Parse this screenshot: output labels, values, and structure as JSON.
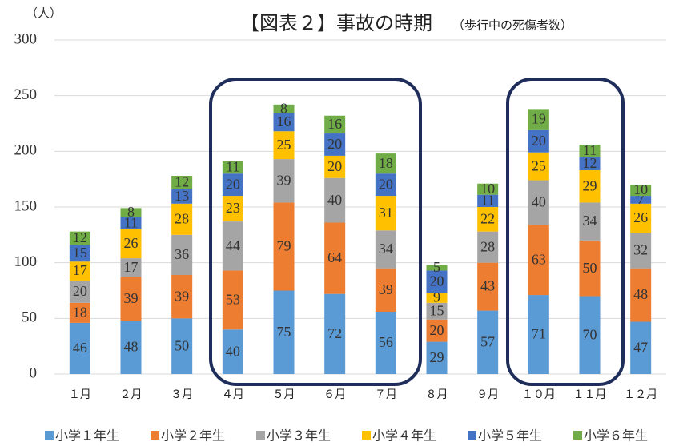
{
  "chart_data": {
    "type": "stacked-bar",
    "title": "【図表２】事故の時期",
    "subtitle": "（歩行中の死傷者数）",
    "y_label": "（人）",
    "categories": [
      "１月",
      "２月",
      "３月",
      "４月",
      "５月",
      "６月",
      "７月",
      "８月",
      "９月",
      "１０月",
      "１１月",
      "１２月"
    ],
    "series": [
      {
        "name": "小学１年生",
        "color": "#5b9bd5",
        "values": [
          46,
          48,
          50,
          40,
          75,
          72,
          56,
          29,
          57,
          71,
          70,
          47
        ]
      },
      {
        "name": "小学２年生",
        "color": "#ed7d31",
        "values": [
          18,
          39,
          39,
          53,
          79,
          64,
          39,
          20,
          43,
          63,
          50,
          48
        ]
      },
      {
        "name": "小学３年生",
        "color": "#a5a5a5",
        "values": [
          20,
          17,
          36,
          44,
          39,
          40,
          34,
          15,
          28,
          40,
          34,
          32
        ]
      },
      {
        "name": "小学４年生",
        "color": "#ffc000",
        "values": [
          17,
          26,
          28,
          23,
          25,
          20,
          31,
          9,
          22,
          25,
          29,
          26
        ]
      },
      {
        "name": "小学５年生",
        "color": "#4472c4",
        "values": [
          15,
          11,
          13,
          20,
          16,
          20,
          20,
          20,
          11,
          20,
          12,
          7
        ]
      },
      {
        "name": "小学６年生",
        "color": "#70ad47",
        "values": [
          12,
          8,
          12,
          11,
          8,
          16,
          18,
          5,
          10,
          19,
          11,
          10
        ]
      }
    ],
    "ylim": [
      0,
      300
    ],
    "yticks": [
      0,
      50,
      100,
      150,
      200,
      250,
      300
    ],
    "grid": true
  }
}
